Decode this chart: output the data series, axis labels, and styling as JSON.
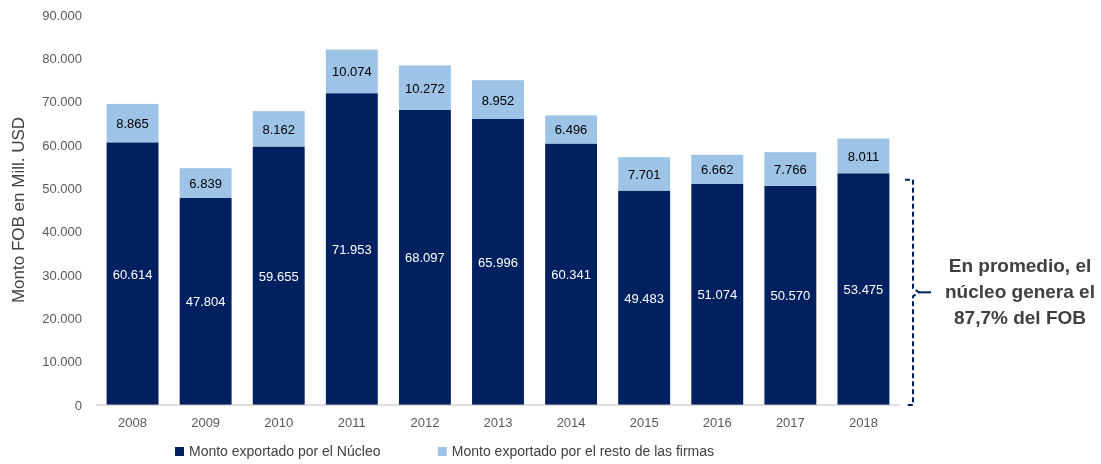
{
  "chart_data": {
    "type": "bar",
    "stacked": true,
    "ylabel": "Monto FOB en Mill. USD",
    "categories": [
      "2008",
      "2009",
      "2010",
      "2011",
      "2012",
      "2013",
      "2014",
      "2015",
      "2016",
      "2017",
      "2018"
    ],
    "series": [
      {
        "name": "Monto exportado por el Núcleo",
        "color": "#002060",
        "values": [
          60614,
          47804,
          59655,
          71953,
          68097,
          65996,
          60341,
          49483,
          51074,
          50570,
          53475
        ],
        "value_labels": [
          "60.614",
          "47.804",
          "59.655",
          "71.953",
          "68.097",
          "65.996",
          "60.341",
          "49.483",
          "51.074",
          "50.570",
          "53.475"
        ]
      },
      {
        "name": "Monto exportado por el resto de las firmas",
        "color": "#9dc3e6",
        "values": [
          8865,
          6839,
          8162,
          10074,
          10272,
          8952,
          6496,
          7701,
          6662,
          7766,
          8011
        ],
        "value_labels": [
          "8.865",
          "6.839",
          "8.162",
          "10.074",
          "10.272",
          "8.952",
          "6.496",
          "7.701",
          "6.662",
          "7.766",
          "8.011"
        ]
      }
    ],
    "ylim": [
      0,
      90000
    ],
    "yticks": [
      {
        "value": 0,
        "label": "0"
      },
      {
        "value": 10000,
        "label": "10.000"
      },
      {
        "value": 20000,
        "label": "20.000"
      },
      {
        "value": 30000,
        "label": "30.000"
      },
      {
        "value": 40000,
        "label": "40.000"
      },
      {
        "value": 50000,
        "label": "50.000"
      },
      {
        "value": 60000,
        "label": "60.000"
      },
      {
        "value": 70000,
        "label": "70.000"
      },
      {
        "value": 80000,
        "label": "80.000"
      },
      {
        "value": 90000,
        "label": "90.000"
      }
    ],
    "legend": "bottom",
    "grid": false,
    "annotations": [
      "En promedio, el núcleo genera el 87,7% del FOB"
    ]
  }
}
